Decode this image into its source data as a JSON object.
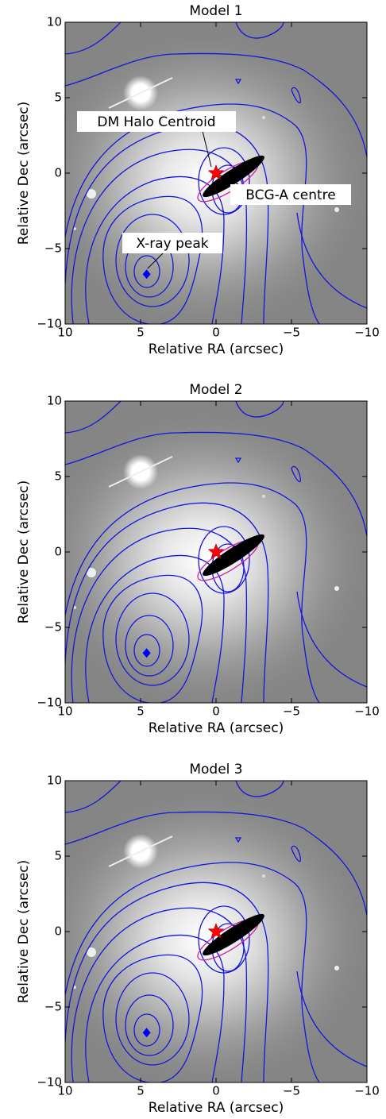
{
  "chart_data": [
    {
      "type": "scatter",
      "title": "Model 1",
      "xlabel": "Relative RA (arcsec)",
      "ylabel": "Relative Dec (arcsec)",
      "xlim": [
        10,
        -10
      ],
      "ylim": [
        -10,
        10
      ],
      "xticks": [
        10,
        5,
        0,
        {
          "value": -5,
          "label": "−5"
        },
        {
          "value": -10,
          "label": "−10"
        }
      ],
      "yticks": [
        {
          "value": -10,
          "label": "−10"
        },
        {
          "value": -5,
          "label": "−5"
        },
        0,
        5,
        10
      ],
      "x": [
        0,
        4.6
      ],
      "values": [
        0,
        -6.7
      ],
      "markers": [
        "star",
        "diamond"
      ],
      "colors": [
        "#ff0000",
        "#0000ff"
      ],
      "annotations": [
        "DM Halo Centroid",
        "BCG-A centre",
        "X-ray peak"
      ]
    },
    {
      "type": "scatter",
      "title": "Model 2",
      "xlabel": "Relative RA (arcsec)",
      "ylabel": "Relative Dec (arcsec)",
      "xlim": [
        10,
        -10
      ],
      "ylim": [
        -10,
        10
      ],
      "xticks": [
        10,
        5,
        0,
        {
          "value": -5,
          "label": "−5"
        },
        {
          "value": -10,
          "label": "−10"
        }
      ],
      "yticks": [
        {
          "value": -10,
          "label": "−10"
        },
        {
          "value": -5,
          "label": "−5"
        },
        0,
        5,
        10
      ],
      "x": [
        0,
        4.6
      ],
      "values": [
        0,
        -6.7
      ],
      "markers": [
        "star",
        "diamond"
      ],
      "colors": [
        "#ff0000",
        "#0000ff"
      ]
    },
    {
      "type": "scatter",
      "title": "Model 3",
      "xlabel": "Relative RA (arcsec)",
      "ylabel": "Relative Dec (arcsec)",
      "xlim": [
        10,
        -10
      ],
      "ylim": [
        -10,
        10
      ],
      "xticks": [
        10,
        5,
        0,
        {
          "value": -5,
          "label": "−5"
        },
        {
          "value": -10,
          "label": "−10"
        }
      ],
      "yticks": [
        {
          "value": -10,
          "label": "−10"
        },
        {
          "value": -5,
          "label": "−5"
        },
        0,
        5,
        10
      ],
      "x": [
        0,
        4.6
      ],
      "values": [
        0,
        -6.7
      ],
      "markers": [
        "star",
        "diamond"
      ],
      "colors": [
        "#ff0000",
        "#0000ff"
      ]
    }
  ]
}
